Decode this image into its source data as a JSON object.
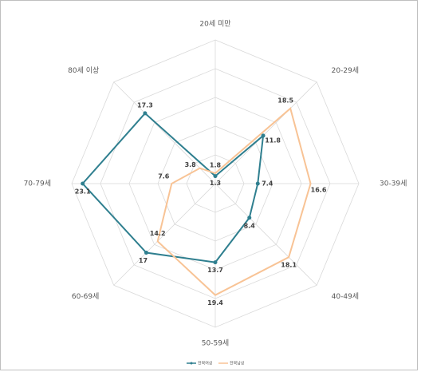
{
  "chart_data": {
    "type": "radar",
    "categories": [
      "20세 미만",
      "20-29세",
      "30-39세",
      "40-49세",
      "50-59세",
      "60-69세",
      "70-79세",
      "80세 이상"
    ],
    "series": [
      {
        "name": "전북여성",
        "color": "#2f7f8f",
        "values": [
          1.3,
          11.8,
          7.4,
          8.4,
          13.7,
          17.0,
          23.1,
          17.3
        ]
      },
      {
        "name": "전북남성",
        "color": "#f8c395",
        "values": [
          1.8,
          18.5,
          16.6,
          18.1,
          19.4,
          14.2,
          7.6,
          3.8
        ]
      }
    ],
    "rlim": [
      0,
      25
    ],
    "rticks": [
      0,
      5,
      10,
      15,
      20,
      25
    ],
    "grid": true
  }
}
